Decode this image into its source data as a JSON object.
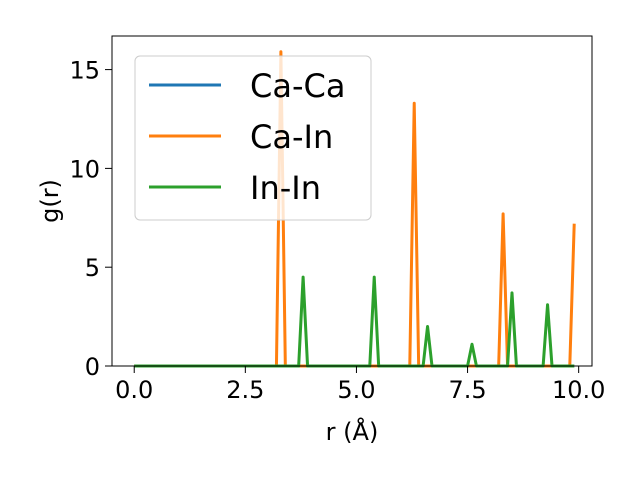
{
  "chart_data": {
    "type": "line",
    "xlabel": "r (Å)",
    "ylabel": "g(r)",
    "xlim": [
      -0.5,
      10.3
    ],
    "ylim": [
      0,
      16.7
    ],
    "xticks": [
      0.0,
      2.5,
      5.0,
      7.5,
      10.0
    ],
    "xtick_labels": [
      "0.0",
      "2.5",
      "5.0",
      "7.5",
      "10.0"
    ],
    "yticks": [
      0,
      5,
      10,
      15
    ],
    "ytick_labels": [
      "0",
      "5",
      "10",
      "15"
    ],
    "grid": false,
    "legend_position": "upper-left",
    "series": [
      {
        "name": "Ca-Ca",
        "color": "#1f77b4",
        "x": [
          0.0,
          9.9
        ],
        "y": [
          0.0,
          0.0
        ]
      },
      {
        "name": "Ca-In",
        "color": "#ff7f0e",
        "x": [
          0.0,
          3.2,
          3.3,
          3.4,
          6.2,
          6.3,
          6.4,
          8.2,
          8.3,
          8.4,
          9.8,
          9.9
        ],
        "y": [
          0.0,
          0.0,
          15.9,
          0.0,
          0.0,
          13.3,
          0.0,
          0.0,
          7.7,
          0.0,
          0.0,
          7.2
        ]
      },
      {
        "name": "In-In",
        "color": "#2ca02c",
        "x": [
          0.0,
          3.7,
          3.8,
          3.9,
          5.3,
          5.4,
          5.5,
          6.5,
          6.6,
          6.7,
          7.5,
          7.6,
          7.7,
          8.4,
          8.5,
          8.6,
          9.2,
          9.3,
          9.4,
          9.9
        ],
        "y": [
          0.0,
          0.0,
          4.5,
          0.0,
          0.0,
          4.5,
          0.0,
          0.0,
          2.0,
          0.0,
          0.0,
          1.1,
          0.0,
          0.0,
          3.7,
          0.0,
          0.0,
          3.1,
          0.0,
          0.0
        ]
      }
    ]
  }
}
